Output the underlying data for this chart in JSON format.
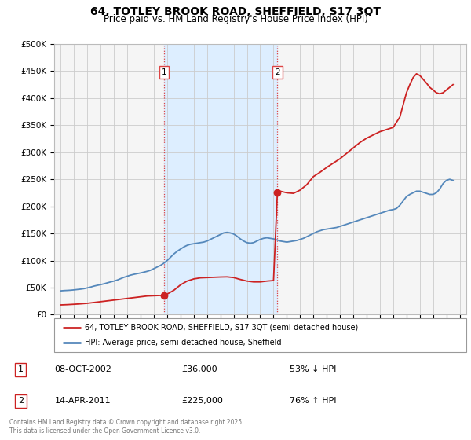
{
  "title": "64, TOTLEY BROOK ROAD, SHEFFIELD, S17 3QT",
  "subtitle": "Price paid vs. HM Land Registry's House Price Index (HPI)",
  "title_fontsize": 10,
  "subtitle_fontsize": 8.5,
  "xlim": [
    1994.5,
    2025.5
  ],
  "ylim": [
    0,
    500000
  ],
  "yticks": [
    0,
    50000,
    100000,
    150000,
    200000,
    250000,
    300000,
    350000,
    400000,
    450000,
    500000
  ],
  "ytick_labels": [
    "£0",
    "£50K",
    "£100K",
    "£150K",
    "£200K",
    "£250K",
    "£300K",
    "£350K",
    "£400K",
    "£450K",
    "£500K"
  ],
  "xticks": [
    1995,
    1996,
    1997,
    1998,
    1999,
    2000,
    2001,
    2002,
    2003,
    2004,
    2005,
    2006,
    2007,
    2008,
    2009,
    2010,
    2011,
    2012,
    2013,
    2014,
    2015,
    2016,
    2017,
    2018,
    2019,
    2020,
    2021,
    2022,
    2023,
    2024,
    2025
  ],
  "hpi_color": "#5588bb",
  "property_color": "#cc2222",
  "marker_color": "#cc2222",
  "shade_color": "#ddeeff",
  "vline_color": "#dd4444",
  "grid_color": "#cccccc",
  "bg_color": "#f5f5f5",
  "transaction1_year": 2002.78,
  "transaction1_price": 36000,
  "transaction1_label": "1",
  "transaction1_date": "08-OCT-2002",
  "transaction1_hpi_pct": "53% ↓ HPI",
  "transaction2_year": 2011.29,
  "transaction2_price": 225000,
  "transaction2_label": "2",
  "transaction2_date": "14-APR-2011",
  "transaction2_hpi_pct": "76% ↑ HPI",
  "footer": "Contains HM Land Registry data © Crown copyright and database right 2025.\nThis data is licensed under the Open Government Licence v3.0.",
  "legend_line1": "64, TOTLEY BROOK ROAD, SHEFFIELD, S17 3QT (semi-detached house)",
  "legend_line2": "HPI: Average price, semi-detached house, Sheffield",
  "hpi_data_x": [
    1995.0,
    1995.25,
    1995.5,
    1995.75,
    1996.0,
    1996.25,
    1996.5,
    1996.75,
    1997.0,
    1997.25,
    1997.5,
    1997.75,
    1998.0,
    1998.25,
    1998.5,
    1998.75,
    1999.0,
    1999.25,
    1999.5,
    1999.75,
    2000.0,
    2000.25,
    2000.5,
    2000.75,
    2001.0,
    2001.25,
    2001.5,
    2001.75,
    2002.0,
    2002.25,
    2002.5,
    2002.75,
    2003.0,
    2003.25,
    2003.5,
    2003.75,
    2004.0,
    2004.25,
    2004.5,
    2004.75,
    2005.0,
    2005.25,
    2005.5,
    2005.75,
    2006.0,
    2006.25,
    2006.5,
    2006.75,
    2007.0,
    2007.25,
    2007.5,
    2007.75,
    2008.0,
    2008.25,
    2008.5,
    2008.75,
    2009.0,
    2009.25,
    2009.5,
    2009.75,
    2010.0,
    2010.25,
    2010.5,
    2010.75,
    2011.0,
    2011.25,
    2011.5,
    2011.75,
    2012.0,
    2012.25,
    2012.5,
    2012.75,
    2013.0,
    2013.25,
    2013.5,
    2013.75,
    2014.0,
    2014.25,
    2014.5,
    2014.75,
    2015.0,
    2015.25,
    2015.5,
    2015.75,
    2016.0,
    2016.25,
    2016.5,
    2016.75,
    2017.0,
    2017.25,
    2017.5,
    2017.75,
    2018.0,
    2018.25,
    2018.5,
    2018.75,
    2019.0,
    2019.25,
    2019.5,
    2019.75,
    2020.0,
    2020.25,
    2020.5,
    2020.75,
    2021.0,
    2021.25,
    2021.5,
    2021.75,
    2022.0,
    2022.25,
    2022.5,
    2022.75,
    2023.0,
    2023.25,
    2023.5,
    2023.75,
    2024.0,
    2024.25,
    2024.5
  ],
  "hpi_data_y": [
    44000,
    44500,
    44800,
    45200,
    45800,
    46500,
    47200,
    48100,
    49500,
    51000,
    52800,
    54200,
    55500,
    57000,
    58800,
    60500,
    62000,
    64000,
    66500,
    69000,
    71000,
    73000,
    74500,
    75800,
    77000,
    78500,
    80000,
    82000,
    85000,
    88000,
    91000,
    95000,
    100000,
    106000,
    112000,
    117000,
    121000,
    125000,
    128000,
    130000,
    131000,
    132000,
    133000,
    134000,
    136000,
    139000,
    142000,
    145000,
    148000,
    151000,
    152000,
    151000,
    149000,
    145000,
    140000,
    136000,
    133000,
    132000,
    133000,
    136000,
    139000,
    141000,
    142000,
    141000,
    140000,
    138000,
    136000,
    135000,
    134000,
    135000,
    136000,
    137000,
    139000,
    141000,
    144000,
    147000,
    150000,
    153000,
    155000,
    157000,
    158000,
    159000,
    160000,
    161000,
    163000,
    165000,
    167000,
    169000,
    171000,
    173000,
    175000,
    177000,
    179000,
    181000,
    183000,
    185000,
    187000,
    189000,
    191000,
    193000,
    194000,
    196000,
    202000,
    210000,
    218000,
    222000,
    225000,
    228000,
    228000,
    226000,
    224000,
    222000,
    222000,
    225000,
    232000,
    242000,
    248000,
    250000,
    248000
  ],
  "property_data_x": [
    1995.0,
    1995.5,
    1996.0,
    1996.5,
    1997.0,
    1997.5,
    1998.0,
    1998.5,
    1999.0,
    1999.5,
    2000.0,
    2000.5,
    2001.0,
    2001.5,
    2002.0,
    2002.5,
    2002.78,
    2003.0,
    2003.5,
    2004.0,
    2004.5,
    2005.0,
    2005.5,
    2006.0,
    2006.5,
    2007.0,
    2007.5,
    2008.0,
    2008.5,
    2009.0,
    2009.5,
    2010.0,
    2010.5,
    2011.0,
    2011.29,
    2011.5,
    2012.0,
    2012.5,
    2013.0,
    2013.5,
    2014.0,
    2014.5,
    2015.0,
    2015.5,
    2016.0,
    2016.5,
    2017.0,
    2017.5,
    2018.0,
    2018.5,
    2019.0,
    2019.5,
    2020.0,
    2020.5,
    2021.0,
    2021.25,
    2021.5,
    2021.75,
    2022.0,
    2022.25,
    2022.5,
    2022.75,
    2023.0,
    2023.25,
    2023.5,
    2023.75,
    2024.0,
    2024.25,
    2024.5
  ],
  "property_data_y": [
    18000,
    18500,
    19200,
    20000,
    21000,
    22500,
    24000,
    25500,
    27000,
    28500,
    30000,
    31500,
    33000,
    34500,
    35000,
    35500,
    36000,
    38000,
    45000,
    55000,
    62000,
    66000,
    68000,
    68500,
    69000,
    69500,
    69800,
    68500,
    65000,
    62000,
    60500,
    60500,
    62000,
    63000,
    225000,
    228000,
    225000,
    224000,
    230000,
    240000,
    255000,
    263000,
    272000,
    280000,
    288000,
    298000,
    308000,
    318000,
    326000,
    332000,
    338000,
    342000,
    346000,
    365000,
    410000,
    425000,
    438000,
    445000,
    442000,
    435000,
    428000,
    420000,
    415000,
    410000,
    408000,
    410000,
    415000,
    420000,
    425000
  ]
}
